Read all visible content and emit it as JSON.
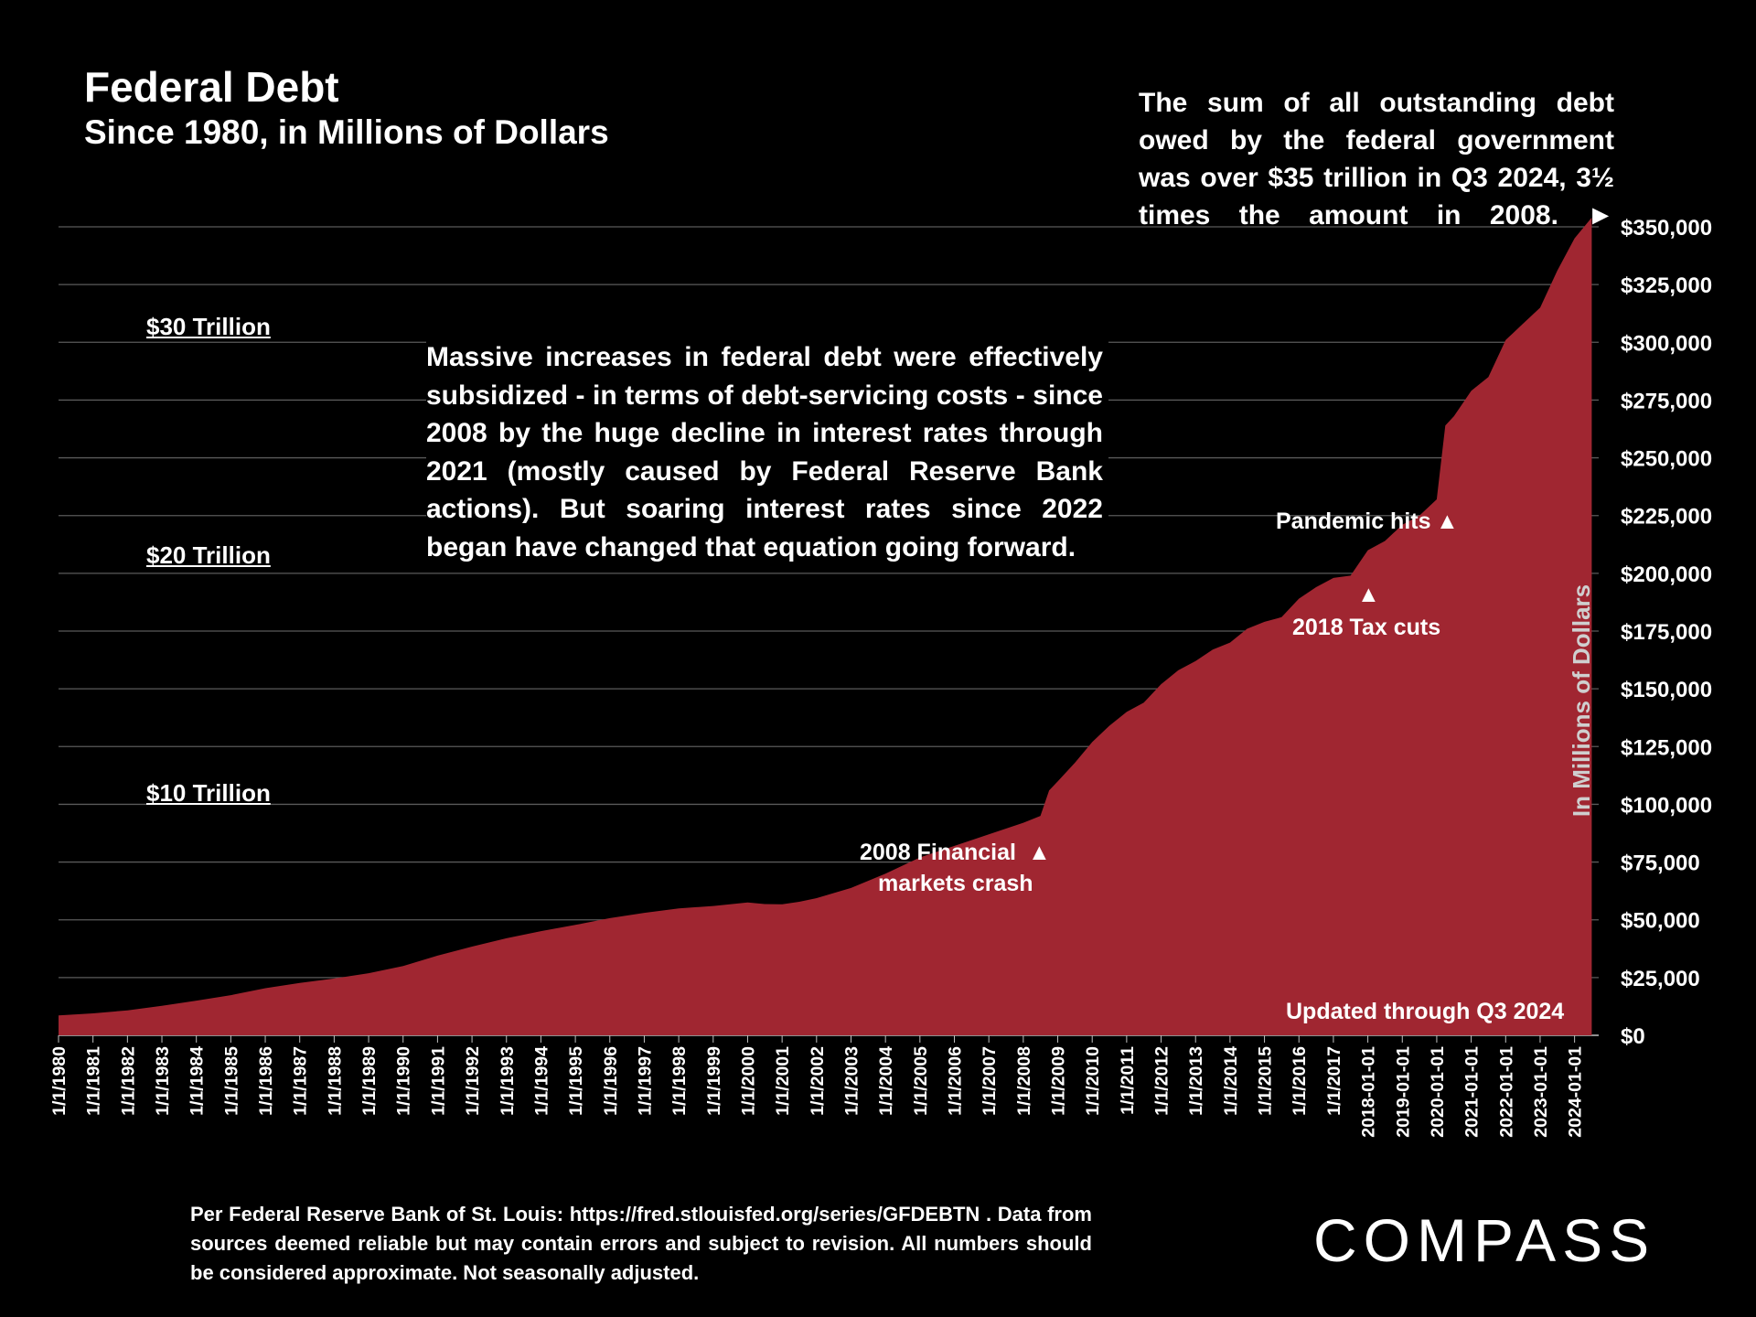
{
  "chart_data": {
    "type": "area",
    "title": "Federal Debt",
    "subtitle": "Since 1980, in Millions of Dollars",
    "ylabel": "In Millions of Dollars",
    "xlabel": "",
    "ylim": [
      0,
      350000
    ],
    "y_ticks": [
      0,
      25000,
      50000,
      75000,
      100000,
      125000,
      150000,
      175000,
      200000,
      225000,
      250000,
      275000,
      300000,
      325000,
      350000
    ],
    "y_tick_labels": [
      "$0",
      "$25,000",
      "$50,000",
      "$75,000",
      "$100,000",
      "$125,000",
      "$150,000",
      "$175,000",
      "$200,000",
      "$225,000",
      "$250,000",
      "$275,000",
      "$300,000",
      "$325,000",
      "$350,000"
    ],
    "grid": true,
    "series_color": "#a02631",
    "x_tick_labels": [
      "1/1/1980",
      "1/1/1981",
      "1/1/1982",
      "1/1/1983",
      "1/1/1984",
      "1/1/1985",
      "1/1/1986",
      "1/1/1987",
      "1/1/1988",
      "1/1/1989",
      "1/1/1990",
      "1/1/1991",
      "1/1/1992",
      "1/1/1993",
      "1/1/1994",
      "1/1/1995",
      "1/1/1996",
      "1/1/1997",
      "1/1/1998",
      "1/1/1999",
      "1/1/2000",
      "1/1/2001",
      "1/1/2002",
      "1/1/2003",
      "1/1/2004",
      "1/1/2005",
      "1/1/2006",
      "1/1/2007",
      "1/1/2008",
      "1/1/2009",
      "1/1/2010",
      "1/1/2011",
      "1/1/2012",
      "1/1/2013",
      "1/1/2014",
      "1/1/2015",
      "1/1/2016",
      "1/1/2017",
      "2018-01-01",
      "2019-01-01",
      "2020-01-01",
      "2021-01-01",
      "2022-01-01",
      "2023-01-01",
      "2024-01-01"
    ],
    "points": [
      [
        "1980-01-01",
        8600
      ],
      [
        "1981-01-01",
        9500
      ],
      [
        "1982-01-01",
        10800
      ],
      [
        "1983-01-01",
        12800
      ],
      [
        "1984-01-01",
        15000
      ],
      [
        "1985-01-01",
        17400
      ],
      [
        "1986-01-01",
        20400
      ],
      [
        "1987-01-01",
        22700
      ],
      [
        "1988-01-01",
        24600
      ],
      [
        "1989-01-01",
        26900
      ],
      [
        "1990-01-01",
        30000
      ],
      [
        "1991-01-01",
        34500
      ],
      [
        "1992-01-01",
        38400
      ],
      [
        "1993-01-01",
        42000
      ],
      [
        "1994-01-01",
        45100
      ],
      [
        "1995-01-01",
        47800
      ],
      [
        "1996-01-01",
        50700
      ],
      [
        "1997-01-01",
        53000
      ],
      [
        "1998-01-01",
        54900
      ],
      [
        "1999-01-01",
        56000
      ],
      [
        "2000-01-01",
        57500
      ],
      [
        "2000-07-01",
        56800
      ],
      [
        "2001-01-01",
        56700
      ],
      [
        "2001-07-01",
        57800
      ],
      [
        "2002-01-01",
        59400
      ],
      [
        "2003-01-01",
        63800
      ],
      [
        "2004-01-01",
        70000
      ],
      [
        "2005-01-01",
        77000
      ],
      [
        "2006-01-01",
        82000
      ],
      [
        "2007-01-01",
        87000
      ],
      [
        "2008-01-01",
        92000
      ],
      [
        "2008-07-01",
        95000
      ],
      [
        "2008-10-01",
        106000
      ],
      [
        "2009-01-01",
        110000
      ],
      [
        "2009-07-01",
        118000
      ],
      [
        "2010-01-01",
        127000
      ],
      [
        "2010-07-01",
        134000
      ],
      [
        "2011-01-01",
        140000
      ],
      [
        "2011-07-01",
        144000
      ],
      [
        "2012-01-01",
        152000
      ],
      [
        "2012-07-01",
        158000
      ],
      [
        "2013-01-01",
        162000
      ],
      [
        "2013-07-01",
        167000
      ],
      [
        "2014-01-01",
        170000
      ],
      [
        "2014-07-01",
        176000
      ],
      [
        "2015-01-01",
        179000
      ],
      [
        "2015-07-01",
        181000
      ],
      [
        "2016-01-01",
        189000
      ],
      [
        "2016-07-01",
        194000
      ],
      [
        "2017-01-01",
        198000
      ],
      [
        "2017-07-01",
        199000
      ],
      [
        "2018-01-01",
        210000
      ],
      [
        "2018-07-01",
        214000
      ],
      [
        "2019-01-01",
        221000
      ],
      [
        "2019-07-01",
        225000
      ],
      [
        "2020-01-01",
        232000
      ],
      [
        "2020-04-01",
        264000
      ],
      [
        "2020-07-01",
        268000
      ],
      [
        "2021-01-01",
        279000
      ],
      [
        "2021-07-01",
        285000
      ],
      [
        "2022-01-01",
        301000
      ],
      [
        "2022-07-01",
        308000
      ],
      [
        "2023-01-01",
        315000
      ],
      [
        "2023-07-01",
        331000
      ],
      [
        "2024-01-01",
        345000
      ],
      [
        "2024-07-01",
        354000
      ]
    ]
  },
  "annotations": {
    "top_note": "The sum of all outstanding debt owed by the federal government was over $35 trillion in Q3 2024, 3½ times the amount in 2008. ►",
    "mid_note": "Massive increases in federal debt were effectively subsidized  - in terms of debt-servicing costs - since 2008 by the huge decline in interest rates through 2021 (mostly caused by Federal Reserve Bank actions). But soaring interest rates since 2022 began have changed that equation going forward.",
    "trillion_30": "$30 Trillion",
    "trillion_20": "$20 Trillion",
    "trillion_10": "$10 Trillion",
    "crash_line1": "2008 Financial",
    "crash_arrow": "▲",
    "crash_line2": "markets crash",
    "pandemic": "Pandemic hits",
    "pandemic_arrow": "▲",
    "tax_arrow": "▲",
    "tax_cuts": "2018 Tax cuts",
    "updated": "Updated through Q3 2024"
  },
  "footer": {
    "source": "Per Federal Reserve Bank of St. Louis: https://fred.stlouisfed.org/series/GFDEBTN . Data from sources deemed reliable but may contain errors and subject to revision. All numbers should be considered approximate. Not seasonally adjusted.",
    "logo": "COMPASS"
  }
}
